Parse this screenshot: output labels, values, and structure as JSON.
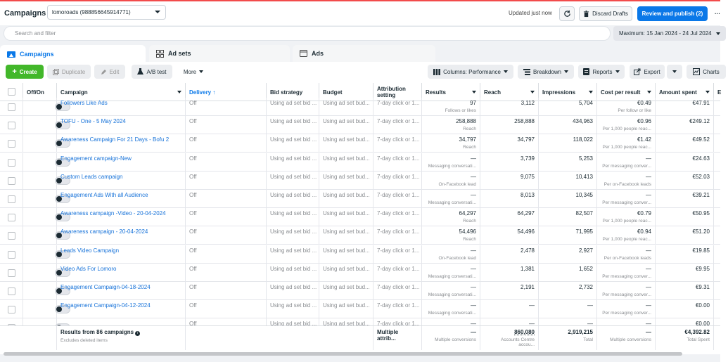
{
  "header": {
    "title": "Campaigns",
    "account": "lomoroads (988856645914771)",
    "updated": "Updated just now",
    "discard_label": "Discard Drafts",
    "publish_label": "Review and publish (2)",
    "more": "···"
  },
  "search": {
    "placeholder": "Search and filter"
  },
  "date_range": "Maximum: 15 Jan 2024 - 24 Jul 2024",
  "tabs": [
    {
      "label": "Campaigns"
    },
    {
      "label": "Ad sets"
    },
    {
      "label": "Ads"
    }
  ],
  "toolbar": {
    "create": "Create",
    "duplicate": "Duplicate",
    "edit": "Edit",
    "abtest": "A/B test",
    "more": "More",
    "columns": "Columns: Performance",
    "breakdown": "Breakdown",
    "reports": "Reports",
    "export": "Export",
    "charts": "Charts"
  },
  "table": {
    "headers": {
      "onoff": "Off/On",
      "campaign": "Campaign",
      "delivery": "Delivery ↑",
      "bid": "Bid strategy",
      "budget": "Budget",
      "attribution": "Attribution setting",
      "results": "Results",
      "reach": "Reach",
      "impressions": "Impressions",
      "cpr": "Cost per result",
      "spent": "Amount spent",
      "extra": "E"
    },
    "rows": [
      {
        "campaign": "Followers Like Ads",
        "delivery": "Off",
        "bid": "Using ad set bid ...",
        "budget": "Using ad set bud...",
        "attr": "7-day click or 1...",
        "results": "97",
        "results_sub": "Follows or likes",
        "reach": "3,112",
        "impressions": "5,704",
        "cpr": "€0.49",
        "cpr_sub": "Per follow or like",
        "spent": "€47.91"
      },
      {
        "campaign": "TOFU - One - 5 May 2024",
        "delivery": "Off",
        "bid": "Using ad set bid ...",
        "budget": "Using ad set bud...",
        "attr": "7-day click or 1...",
        "results": "258,888",
        "results_sub": "Reach",
        "reach": "258,888",
        "impressions": "434,963",
        "cpr": "€0.96",
        "cpr_sub": "Per 1,000 people reac...",
        "spent": "€249.12"
      },
      {
        "campaign": "Awareness Campaign For 21 Days - Bofu 2",
        "delivery": "Off",
        "bid": "Using ad set bid ...",
        "budget": "Using ad set bud...",
        "attr": "7-day click or 1...",
        "results": "34,797",
        "results_sub": "Reach",
        "reach": "34,797",
        "impressions": "118,022",
        "cpr": "€1.42",
        "cpr_sub": "Per 1,000 people reac...",
        "spent": "€49.52"
      },
      {
        "campaign": "Engagement campaign-New",
        "delivery": "Off",
        "bid": "Using ad set bid ...",
        "budget": "Using ad set bud...",
        "attr": "7-day click or 1...",
        "results": "—",
        "results_sub": "Messaging conversati...",
        "reach": "3,739",
        "impressions": "5,253",
        "cpr": "—",
        "cpr_sub": "Per messaging conver...",
        "spent": "€24.63"
      },
      {
        "campaign": "Custom Leads campaign",
        "delivery": "Off",
        "bid": "Using ad set bid ...",
        "budget": "Using ad set bud...",
        "attr": "7-day click or 1...",
        "results": "—",
        "results_sub": "On-Facebook lead",
        "reach": "9,075",
        "impressions": "10,413",
        "cpr": "—",
        "cpr_sub": "Per on-Facebook leads",
        "spent": "€52.03"
      },
      {
        "campaign": "Engagement Ads With all Audience",
        "delivery": "Off",
        "bid": "Using ad set bid ...",
        "budget": "Using ad set bud...",
        "attr": "7-day click or 1...",
        "results": "—",
        "results_sub": "Messaging conversati...",
        "reach": "8,013",
        "impressions": "10,345",
        "cpr": "—",
        "cpr_sub": "Per messaging conver...",
        "spent": "€39.21"
      },
      {
        "campaign": "Awareness campaign -Video - 20-04-2024",
        "delivery": "Off",
        "bid": "Using ad set bid ...",
        "budget": "Using ad set bud...",
        "attr": "7-day click or 1...",
        "results": "64,297",
        "results_sub": "Reach",
        "reach": "64,297",
        "impressions": "82,507",
        "cpr": "€0.79",
        "cpr_sub": "Per 1,000 people reac...",
        "spent": "€50.95"
      },
      {
        "campaign": "Awareness campaign - 20-04-2024",
        "delivery": "Off",
        "bid": "Using ad set bid ...",
        "budget": "Using ad set bud...",
        "attr": "7-day click or 1...",
        "results": "54,496",
        "results_sub": "Reach",
        "reach": "54,496",
        "impressions": "71,995",
        "cpr": "€0.94",
        "cpr_sub": "Per 1,000 people reac...",
        "spent": "€51.20"
      },
      {
        "campaign": "Leads Video Campaign",
        "delivery": "Off",
        "bid": "Using ad set bid ...",
        "budget": "Using ad set bud...",
        "attr": "7-day click or 1...",
        "results": "—",
        "results_sub": "On-Facebook lead",
        "reach": "2,478",
        "impressions": "2,927",
        "cpr": "—",
        "cpr_sub": "Per on-Facebook leads",
        "spent": "€19.85"
      },
      {
        "campaign": "Video Ads For Lomoro",
        "delivery": "Off",
        "bid": "Using ad set bid ...",
        "budget": "Using ad set bud...",
        "attr": "7-day click or 1...",
        "results": "—",
        "results_sub": "Messaging conversati...",
        "reach": "1,381",
        "impressions": "1,652",
        "cpr": "—",
        "cpr_sub": "Per messaging conver...",
        "spent": "€9.95"
      },
      {
        "campaign": "Engagement Campaign-04-18-2024",
        "delivery": "Off",
        "bid": "Using ad set bid ...",
        "budget": "Using ad set bud...",
        "attr": "7-day click or 1...",
        "results": "—",
        "results_sub": "Messaging conversati...",
        "reach": "2,191",
        "impressions": "2,732",
        "cpr": "—",
        "cpr_sub": "Per messaging conver...",
        "spent": "€9.31"
      },
      {
        "campaign": "Engagement Campaign-04-12-2024",
        "delivery": "Off",
        "bid": "Using ad set bid ...",
        "budget": "Using ad set bud...",
        "attr": "7-day click or 1...",
        "results": "—",
        "results_sub": "Messaging conversati...",
        "reach": "—",
        "impressions": "—",
        "cpr": "—",
        "cpr_sub": "Per messaging conver...",
        "spent": "€0.00"
      },
      {
        "campaign": "",
        "delivery": "Off",
        "bid": "Using ad set bid ...",
        "budget": "Using ad set bud...",
        "attr": "7-day click or 1...",
        "results": "—",
        "results_sub": "",
        "reach": "—",
        "impressions": "—",
        "cpr": "—",
        "cpr_sub": "",
        "spent": "€0.00"
      }
    ],
    "footer": {
      "results_label": "Results from 86 campaigns",
      "excludes": "Excludes deleted items",
      "attribution": "Multiple attrib...",
      "results": "—",
      "results_sub": "Multiple conversions",
      "reach": "860,080",
      "reach_sub": "Accounts Centre accou...",
      "impressions": "2,919,215",
      "impressions_sub": "Total",
      "cpr": "—",
      "cpr_sub": "Multiple conversions",
      "spent": "€4,392.82",
      "spent_sub": "Total Spent"
    }
  }
}
